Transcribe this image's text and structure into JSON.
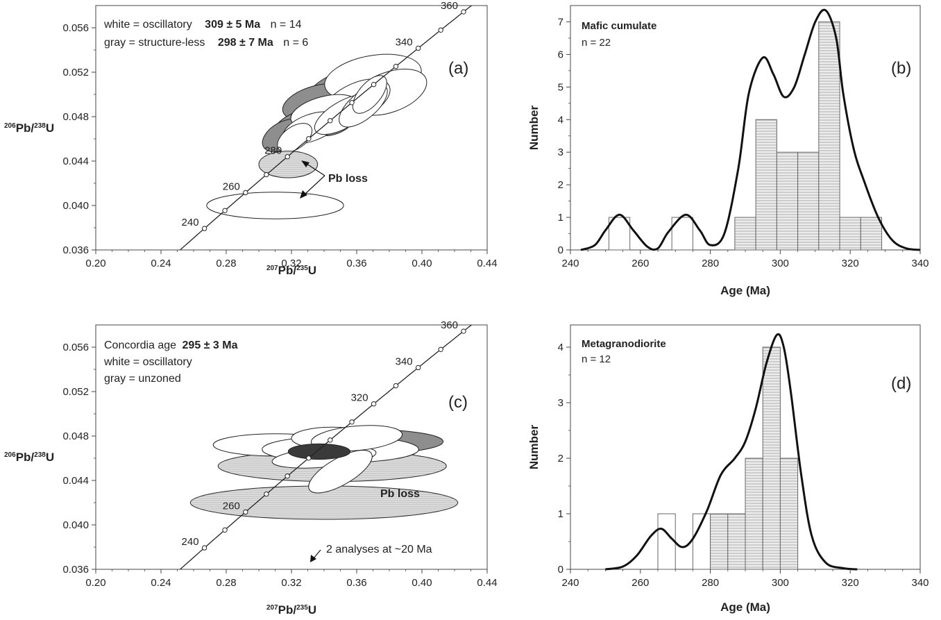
{
  "chart_data": [
    {
      "panel": "(a)",
      "type": "scatter",
      "xlabel_main": "Pb/U",
      "xlabel_sup1": "207",
      "xlabel_sup2": "235",
      "ylabel_main": "Pb/U",
      "ylabel_sup1": "206",
      "ylabel_sup2": "238",
      "xlim": [
        0.2,
        0.44
      ],
      "ylim": [
        0.036,
        0.058
      ],
      "xticks": [
        "0.20",
        "0.24",
        "0.28",
        "0.32",
        "0.36",
        "0.40",
        "0.44"
      ],
      "yticks": [
        "0.036",
        "0.040",
        "0.044",
        "0.048",
        "0.052",
        "0.056"
      ],
      "annotation_line1": {
        "pre": "white = oscillatory",
        "bold": "309 ± 5 Ma",
        "post": "n = 14"
      },
      "annotation_line2": {
        "pre": "gray = structure-less",
        "bold": "298 ± 7 Ma",
        "post": "n = 6"
      },
      "callout": "Pb loss",
      "concordia_labels": [
        "240",
        "260",
        "280",
        "340",
        "360"
      ],
      "concordia_ages": [
        240,
        260,
        280,
        340,
        360
      ],
      "ellipses": [
        {
          "x": 0.357,
          "y": 0.0505,
          "rx": 0.028,
          "ry": 0.0018,
          "angle": -15,
          "fill": "gray"
        },
        {
          "x": 0.336,
          "y": 0.0493,
          "rx": 0.022,
          "ry": 0.0015,
          "angle": -15,
          "fill": "gray"
        },
        {
          "x": 0.326,
          "y": 0.0472,
          "rx": 0.018,
          "ry": 0.0013,
          "angle": -20,
          "fill": "gray"
        },
        {
          "x": 0.345,
          "y": 0.0478,
          "rx": 0.015,
          "ry": 0.0014,
          "angle": -20,
          "fill": "gray"
        },
        {
          "x": 0.372,
          "y": 0.0503,
          "rx": 0.022,
          "ry": 0.0015,
          "angle": -10,
          "fill": "gray"
        },
        {
          "x": 0.315,
          "y": 0.0463,
          "rx": 0.014,
          "ry": 0.0012,
          "angle": -30,
          "fill": "gray"
        },
        {
          "x": 0.37,
          "y": 0.0515,
          "rx": 0.03,
          "ry": 0.002,
          "angle": -10,
          "fill": "white"
        },
        {
          "x": 0.38,
          "y": 0.0502,
          "rx": 0.024,
          "ry": 0.0018,
          "angle": -20,
          "fill": "white"
        },
        {
          "x": 0.36,
          "y": 0.0494,
          "rx": 0.022,
          "ry": 0.0016,
          "angle": -25,
          "fill": "white"
        },
        {
          "x": 0.34,
          "y": 0.0485,
          "rx": 0.021,
          "ry": 0.0013,
          "angle": -15,
          "fill": "white"
        },
        {
          "x": 0.332,
          "y": 0.047,
          "rx": 0.018,
          "ry": 0.0012,
          "angle": -20,
          "fill": "white"
        },
        {
          "x": 0.352,
          "y": 0.0482,
          "rx": 0.02,
          "ry": 0.0012,
          "angle": -30,
          "fill": "white"
        },
        {
          "x": 0.322,
          "y": 0.0461,
          "rx": 0.012,
          "ry": 0.001,
          "angle": -35,
          "fill": "white"
        },
        {
          "x": 0.364,
          "y": 0.049,
          "rx": 0.018,
          "ry": 0.0012,
          "angle": -40,
          "fill": "white"
        },
        {
          "x": 0.368,
          "y": 0.05,
          "rx": 0.014,
          "ry": 0.001,
          "angle": -50,
          "fill": "white"
        },
        {
          "x": 0.318,
          "y": 0.0437,
          "rx": 0.018,
          "ry": 0.0012,
          "angle": 0,
          "fill": "lightgray"
        },
        {
          "x": 0.31,
          "y": 0.04,
          "rx": 0.042,
          "ry": 0.0012,
          "angle": 0,
          "fill": "white"
        }
      ]
    },
    {
      "panel": "(b)",
      "type": "bar",
      "title": "Mafic cumulate",
      "n_label": "n = 22",
      "xlabel": "Age (Ma)",
      "ylabel": "Number",
      "xlim": [
        240,
        340
      ],
      "ylim": [
        0,
        7.5
      ],
      "xticks": [
        "240",
        "260",
        "280",
        "300",
        "320",
        "340"
      ],
      "yticks": [
        "0",
        "1",
        "2",
        "3",
        "4",
        "5",
        "6",
        "7"
      ],
      "bins": [
        {
          "x0": 251,
          "x1": 257,
          "count": 1,
          "style": "open"
        },
        {
          "x0": 269,
          "x1": 275,
          "count": 1,
          "style": "open"
        },
        {
          "x0": 287,
          "x1": 293,
          "count": 1,
          "style": "hatched"
        },
        {
          "x0": 293,
          "x1": 299,
          "count": 4,
          "style": "hatched"
        },
        {
          "x0": 299,
          "x1": 305,
          "count": 3,
          "style": "hatched"
        },
        {
          "x0": 305,
          "x1": 311,
          "count": 3,
          "style": "hatched"
        },
        {
          "x0": 311,
          "x1": 317,
          "count": 7,
          "style": "hatched"
        },
        {
          "x0": 317,
          "x1": 323,
          "count": 1,
          "style": "hatched"
        },
        {
          "x0": 323,
          "x1": 329,
          "count": 1,
          "style": "hatched"
        }
      ],
      "curve": [
        [
          243,
          0
        ],
        [
          247,
          0.15
        ],
        [
          250,
          0.6
        ],
        [
          254,
          1.08
        ],
        [
          258,
          0.6
        ],
        [
          262,
          0.1
        ],
        [
          265,
          0.05
        ],
        [
          268,
          0.55
        ],
        [
          273,
          1.08
        ],
        [
          277,
          0.6
        ],
        [
          280,
          0.15
        ],
        [
          284,
          0.5
        ],
        [
          288,
          2.5
        ],
        [
          291,
          4.8
        ],
        [
          295,
          5.9
        ],
        [
          298,
          5.4
        ],
        [
          301,
          4.7
        ],
        [
          304,
          5.0
        ],
        [
          307,
          6.0
        ],
        [
          310,
          7.0
        ],
        [
          313,
          7.35
        ],
        [
          316,
          6.5
        ],
        [
          318,
          4.8
        ],
        [
          321,
          3.1
        ],
        [
          324,
          2.1
        ],
        [
          328,
          1.0
        ],
        [
          332,
          0.3
        ],
        [
          336,
          0.05
        ],
        [
          340,
          0
        ]
      ]
    },
    {
      "panel": "(c)",
      "type": "scatter",
      "xlabel_main": "Pb/U",
      "xlabel_sup1": "207",
      "xlabel_sup2": "235",
      "ylabel_main": "Pb/U",
      "ylabel_sup1": "206",
      "ylabel_sup2": "238",
      "xlim": [
        0.2,
        0.44
      ],
      "ylim": [
        0.036,
        0.058
      ],
      "xticks": [
        "0.20",
        "0.24",
        "0.28",
        "0.32",
        "0.36",
        "0.40",
        "0.44"
      ],
      "yticks": [
        "0.036",
        "0.040",
        "0.044",
        "0.048",
        "0.052",
        "0.056"
      ],
      "annotation_line1": {
        "pre": "Concordia age",
        "bold": "295 ± 3 Ma",
        "post": ""
      },
      "annotation_line2": {
        "pre": "white = oscillatory",
        "bold": "",
        "post": ""
      },
      "annotation_line3": "gray = unzoned",
      "callout": "Pb loss",
      "note": "2 analyses at ~20 Ma",
      "concordia_labels": [
        "240",
        "260",
        "320",
        "340",
        "360"
      ],
      "concordia_ages": [
        240,
        260,
        320,
        340,
        360
      ],
      "ellipses": [
        {
          "x": 0.34,
          "y": 0.042,
          "rx": 0.082,
          "ry": 0.0015,
          "angle": 0,
          "fill": "lightgray"
        },
        {
          "x": 0.345,
          "y": 0.0453,
          "rx": 0.07,
          "ry": 0.0014,
          "angle": 0,
          "fill": "lightgray"
        },
        {
          "x": 0.365,
          "y": 0.0475,
          "rx": 0.048,
          "ry": 0.0011,
          "angle": 0,
          "fill": "gray"
        },
        {
          "x": 0.31,
          "y": 0.0472,
          "rx": 0.038,
          "ry": 0.001,
          "angle": 0,
          "fill": "white"
        },
        {
          "x": 0.35,
          "y": 0.0468,
          "rx": 0.048,
          "ry": 0.0012,
          "angle": 0,
          "fill": "white"
        },
        {
          "x": 0.34,
          "y": 0.0461,
          "rx": 0.032,
          "ry": 0.0009,
          "angle": -5,
          "fill": "white"
        },
        {
          "x": 0.345,
          "y": 0.0478,
          "rx": 0.025,
          "ry": 0.001,
          "angle": 0,
          "fill": "white"
        },
        {
          "x": 0.35,
          "y": 0.0448,
          "rx": 0.022,
          "ry": 0.0012,
          "angle": -30,
          "fill": "white"
        },
        {
          "x": 0.36,
          "y": 0.0478,
          "rx": 0.028,
          "ry": 0.0011,
          "angle": -5,
          "fill": "white"
        },
        {
          "x": 0.337,
          "y": 0.0466,
          "rx": 0.019,
          "ry": 0.0007,
          "angle": 0,
          "fill": "dark"
        }
      ]
    },
    {
      "panel": "(d)",
      "type": "bar",
      "title": "Metagranodiorite",
      "n_label": "n = 12",
      "xlabel": "Age (Ma)",
      "ylabel": "Number",
      "xlim": [
        240,
        340
      ],
      "ylim": [
        0,
        4.4
      ],
      "xticks": [
        "240",
        "260",
        "280",
        "300",
        "320",
        "340"
      ],
      "yticks": [
        "0",
        "1",
        "2",
        "3",
        "4"
      ],
      "bins": [
        {
          "x0": 265,
          "x1": 270,
          "count": 1,
          "style": "open"
        },
        {
          "x0": 275,
          "x1": 280,
          "count": 1,
          "style": "open"
        },
        {
          "x0": 280,
          "x1": 285,
          "count": 1,
          "style": "hatched"
        },
        {
          "x0": 285,
          "x1": 290,
          "count": 1,
          "style": "hatched"
        },
        {
          "x0": 290,
          "x1": 295,
          "count": 2,
          "style": "hatched"
        },
        {
          "x0": 295,
          "x1": 300,
          "count": 4,
          "style": "hatched"
        },
        {
          "x0": 300,
          "x1": 305,
          "count": 2,
          "style": "hatched"
        }
      ],
      "curve": [
        [
          250,
          0
        ],
        [
          255,
          0.05
        ],
        [
          259,
          0.25
        ],
        [
          263,
          0.6
        ],
        [
          266,
          0.73
        ],
        [
          269,
          0.55
        ],
        [
          272,
          0.4
        ],
        [
          275,
          0.55
        ],
        [
          279,
          1.05
        ],
        [
          283,
          1.7
        ],
        [
          287,
          2.0
        ],
        [
          290,
          2.3
        ],
        [
          293,
          2.9
        ],
        [
          296,
          3.7
        ],
        [
          299,
          4.22
        ],
        [
          301,
          4.0
        ],
        [
          303,
          3.2
        ],
        [
          306,
          1.7
        ],
        [
          309,
          0.6
        ],
        [
          313,
          0.12
        ],
        [
          318,
          0.02
        ],
        [
          322,
          0
        ]
      ]
    }
  ]
}
